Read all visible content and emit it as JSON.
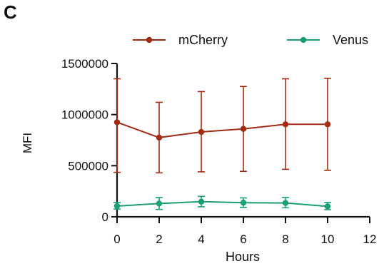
{
  "panel_label": "C",
  "chart_data": {
    "type": "line",
    "x": [
      0,
      2,
      4,
      6,
      8,
      10
    ],
    "xlabel": "Hours",
    "ylabel": "MFI",
    "xlim": [
      0,
      12
    ],
    "ylim": [
      0,
      1500000
    ],
    "xticks": [
      0,
      2,
      4,
      6,
      8,
      10,
      12
    ],
    "xtick_labels": [
      "0",
      "2",
      "4",
      "6",
      "8",
      "10",
      "12"
    ],
    "yticks": [
      0,
      500000,
      1000000,
      1500000
    ],
    "ytick_labels": [
      "0",
      "500000",
      "1000000",
      "1500000"
    ],
    "grid": false,
    "legend_position": "top",
    "series": [
      {
        "name": "mCherry",
        "color": "#a52a14",
        "values": [
          925000,
          775000,
          830000,
          860000,
          905000,
          905000
        ],
        "err_low": [
          435000,
          430000,
          440000,
          445000,
          465000,
          455000
        ],
        "err_high": [
          1350000,
          1120000,
          1225000,
          1275000,
          1350000,
          1355000
        ]
      },
      {
        "name": "Venus",
        "color": "#1a9e74",
        "values": [
          105000,
          130000,
          148000,
          138000,
          135000,
          102000
        ],
        "err_low": [
          75000,
          72000,
          98000,
          92000,
          88000,
          70000
        ],
        "err_high": [
          140000,
          188000,
          200000,
          185000,
          190000,
          140000
        ]
      }
    ]
  }
}
